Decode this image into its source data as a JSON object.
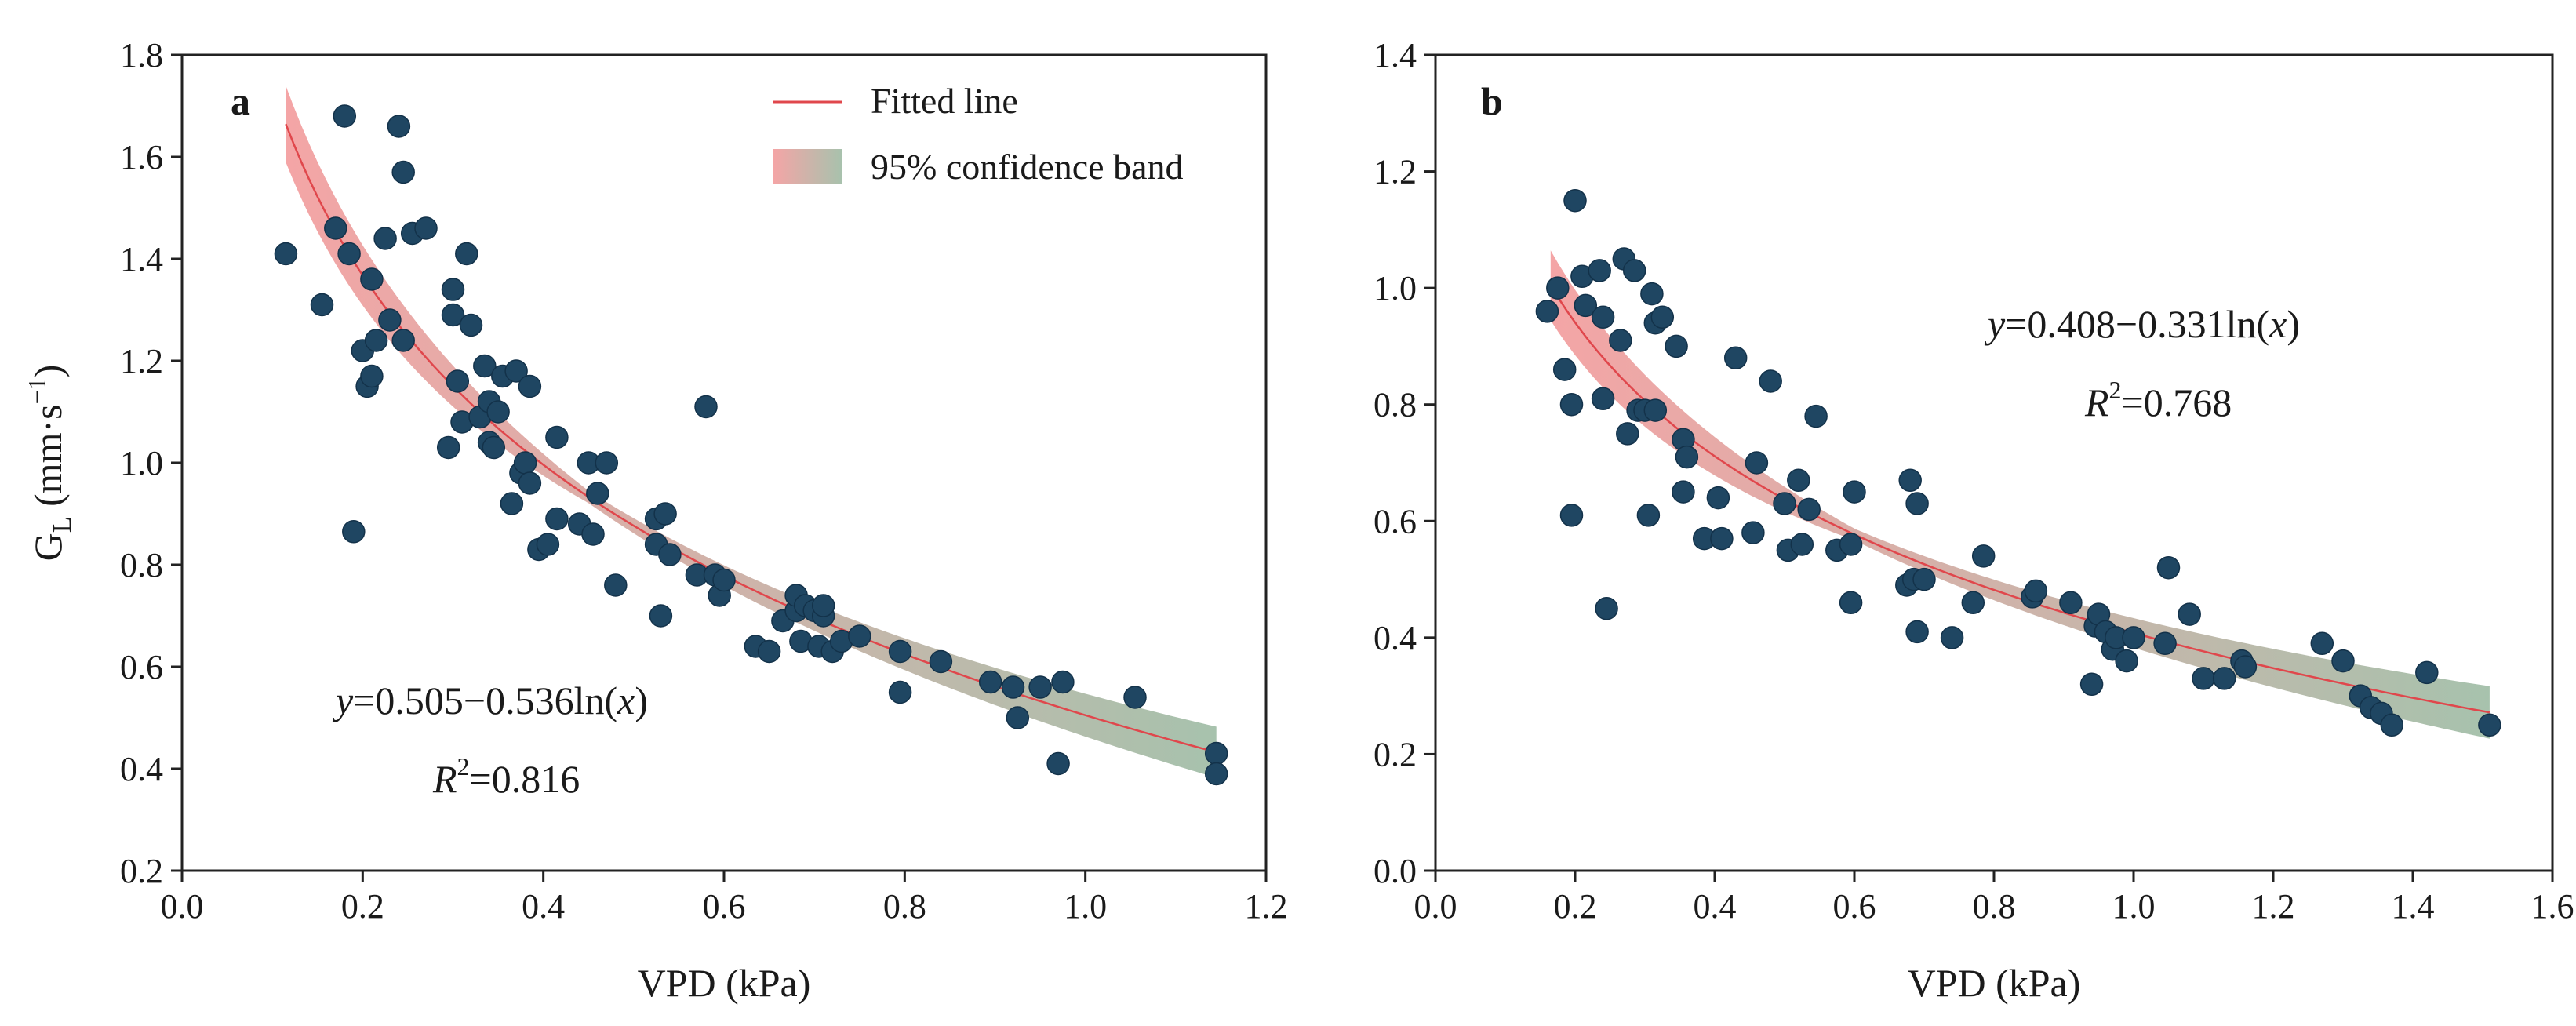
{
  "chart_data": [
    {
      "type": "scatter",
      "panel_label": "a",
      "xlabel": "VPD (kPa)",
      "ylabel_main": "G",
      "ylabel_sub": "L",
      "ylabel_units_pre": " (mm·s",
      "ylabel_units_sup": "−1",
      "ylabel_units_post": ")",
      "xlim": [
        0,
        1.2
      ],
      "ylim": [
        0.2,
        1.8
      ],
      "xticks": [
        0.0,
        0.2,
        0.4,
        0.6,
        0.8,
        1.0,
        1.2
      ],
      "yticks": [
        0.2,
        0.4,
        0.6,
        0.8,
        1.0,
        1.2,
        1.4,
        1.6,
        1.8
      ],
      "tick_decimals": 1,
      "fit": {
        "a": 0.505,
        "b": -0.536,
        "x_range": [
          0.115,
          1.145
        ],
        "band_halfwidth_ends": [
          0.075,
          0.05
        ],
        "band_halfwidth_mid": 0.012,
        "band_mid_x": 0.45
      },
      "equation": {
        "y": "y",
        "rhs": "=0.505−0.536ln(",
        "x": "x",
        "close": ")"
      },
      "r2": {
        "r": "R",
        "sup": "2",
        "value": "=0.816"
      },
      "legend": {
        "fit_label": "Fitted line",
        "band_label": "95% confidence band",
        "position": "top-right"
      },
      "points": [
        [
          0.115,
          1.41
        ],
        [
          0.155,
          1.31
        ],
        [
          0.17,
          1.46
        ],
        [
          0.18,
          1.68
        ],
        [
          0.185,
          1.41
        ],
        [
          0.19,
          0.865
        ],
        [
          0.2,
          1.22
        ],
        [
          0.205,
          1.15
        ],
        [
          0.21,
          1.36
        ],
        [
          0.21,
          1.17
        ],
        [
          0.215,
          1.24
        ],
        [
          0.225,
          1.44
        ],
        [
          0.23,
          1.28
        ],
        [
          0.24,
          1.66
        ],
        [
          0.245,
          1.57
        ],
        [
          0.245,
          1.24
        ],
        [
          0.255,
          1.45
        ],
        [
          0.27,
          1.46
        ],
        [
          0.295,
          1.03
        ],
        [
          0.3,
          1.29
        ],
        [
          0.3,
          1.34
        ],
        [
          0.305,
          1.16
        ],
        [
          0.31,
          1.08
        ],
        [
          0.315,
          1.41
        ],
        [
          0.32,
          1.27
        ],
        [
          0.33,
          1.09
        ],
        [
          0.335,
          1.19
        ],
        [
          0.34,
          1.04
        ],
        [
          0.34,
          1.12
        ],
        [
          0.345,
          1.03
        ],
        [
          0.35,
          1.1
        ],
        [
          0.355,
          1.17
        ],
        [
          0.365,
          0.92
        ],
        [
          0.37,
          1.18
        ],
        [
          0.375,
          0.98
        ],
        [
          0.38,
          1.0
        ],
        [
          0.385,
          0.96
        ],
        [
          0.385,
          1.15
        ],
        [
          0.395,
          0.83
        ],
        [
          0.405,
          0.84
        ],
        [
          0.415,
          1.05
        ],
        [
          0.415,
          0.89
        ],
        [
          0.44,
          0.88
        ],
        [
          0.45,
          1.0
        ],
        [
          0.455,
          0.86
        ],
        [
          0.46,
          0.94
        ],
        [
          0.47,
          1.0
        ],
        [
          0.48,
          0.76
        ],
        [
          0.525,
          0.89
        ],
        [
          0.525,
          0.84
        ],
        [
          0.53,
          0.7
        ],
        [
          0.535,
          0.9
        ],
        [
          0.54,
          0.82
        ],
        [
          0.57,
          0.78
        ],
        [
          0.58,
          1.11
        ],
        [
          0.59,
          0.78
        ],
        [
          0.595,
          0.74
        ],
        [
          0.6,
          0.77
        ],
        [
          0.635,
          0.64
        ],
        [
          0.65,
          0.63
        ],
        [
          0.665,
          0.69
        ],
        [
          0.68,
          0.71
        ],
        [
          0.68,
          0.74
        ],
        [
          0.685,
          0.65
        ],
        [
          0.69,
          0.72
        ],
        [
          0.7,
          0.71
        ],
        [
          0.705,
          0.64
        ],
        [
          0.71,
          0.7
        ],
        [
          0.71,
          0.72
        ],
        [
          0.72,
          0.63
        ],
        [
          0.73,
          0.65
        ],
        [
          0.75,
          0.66
        ],
        [
          0.795,
          0.63
        ],
        [
          0.795,
          0.55
        ],
        [
          0.84,
          0.61
        ],
        [
          0.895,
          0.57
        ],
        [
          0.92,
          0.56
        ],
        [
          0.925,
          0.5
        ],
        [
          0.95,
          0.56
        ],
        [
          0.97,
          0.41
        ],
        [
          0.975,
          0.57
        ],
        [
          1.055,
          0.54
        ],
        [
          1.145,
          0.43
        ],
        [
          1.145,
          0.39
        ]
      ]
    },
    {
      "type": "scatter",
      "panel_label": "b",
      "xlabel": "VPD (kPa)",
      "xlim": [
        0,
        1.6
      ],
      "ylim": [
        0.0,
        1.4
      ],
      "xticks": [
        0.0,
        0.2,
        0.4,
        0.6,
        0.8,
        1.0,
        1.2,
        1.4,
        1.6
      ],
      "yticks": [
        0.0,
        0.2,
        0.4,
        0.6,
        0.8,
        1.0,
        1.2,
        1.4
      ],
      "tick_decimals": 1,
      "fit": {
        "a": 0.408,
        "b": -0.331,
        "x_range": [
          0.165,
          1.51
        ],
        "band_halfwidth_ends": [
          0.06,
          0.045
        ],
        "band_halfwidth_mid": 0.01,
        "band_mid_x": 0.6
      },
      "equation": {
        "y": "y",
        "rhs": "=0.408−0.331ln(",
        "x": "x",
        "close": ")"
      },
      "r2": {
        "r": "R",
        "sup": "2",
        "value": "=0.768"
      },
      "points": [
        [
          0.16,
          0.96
        ],
        [
          0.175,
          1.0
        ],
        [
          0.185,
          0.86
        ],
        [
          0.195,
          0.8
        ],
        [
          0.195,
          0.61
        ],
        [
          0.2,
          1.15
        ],
        [
          0.21,
          1.02
        ],
        [
          0.215,
          0.97
        ],
        [
          0.235,
          1.03
        ],
        [
          0.24,
          0.95
        ],
        [
          0.24,
          0.81
        ],
        [
          0.245,
          0.45
        ],
        [
          0.265,
          0.91
        ],
        [
          0.27,
          1.05
        ],
        [
          0.275,
          0.75
        ],
        [
          0.285,
          1.03
        ],
        [
          0.29,
          0.79
        ],
        [
          0.3,
          0.79
        ],
        [
          0.305,
          0.61
        ],
        [
          0.31,
          0.99
        ],
        [
          0.315,
          0.94
        ],
        [
          0.315,
          0.79
        ],
        [
          0.325,
          0.95
        ],
        [
          0.345,
          0.9
        ],
        [
          0.355,
          0.74
        ],
        [
          0.355,
          0.65
        ],
        [
          0.36,
          0.71
        ],
        [
          0.385,
          0.57
        ],
        [
          0.405,
          0.64
        ],
        [
          0.41,
          0.57
        ],
        [
          0.43,
          0.88
        ],
        [
          0.455,
          0.58
        ],
        [
          0.46,
          0.7
        ],
        [
          0.48,
          0.84
        ],
        [
          0.5,
          0.63
        ],
        [
          0.505,
          0.55
        ],
        [
          0.52,
          0.67
        ],
        [
          0.525,
          0.56
        ],
        [
          0.535,
          0.62
        ],
        [
          0.545,
          0.78
        ],
        [
          0.575,
          0.55
        ],
        [
          0.595,
          0.46
        ],
        [
          0.595,
          0.56
        ],
        [
          0.6,
          0.65
        ],
        [
          0.675,
          0.49
        ],
        [
          0.68,
          0.67
        ],
        [
          0.685,
          0.5
        ],
        [
          0.69,
          0.41
        ],
        [
          0.69,
          0.63
        ],
        [
          0.7,
          0.5
        ],
        [
          0.74,
          0.4
        ],
        [
          0.77,
          0.46
        ],
        [
          0.785,
          0.54
        ],
        [
          0.855,
          0.47
        ],
        [
          0.86,
          0.48
        ],
        [
          0.91,
          0.46
        ],
        [
          0.94,
          0.32
        ],
        [
          0.945,
          0.42
        ],
        [
          0.95,
          0.44
        ],
        [
          0.96,
          0.41
        ],
        [
          0.97,
          0.38
        ],
        [
          0.975,
          0.4
        ],
        [
          0.99,
          0.36
        ],
        [
          1.0,
          0.4
        ],
        [
          1.045,
          0.39
        ],
        [
          1.05,
          0.52
        ],
        [
          1.08,
          0.44
        ],
        [
          1.1,
          0.33
        ],
        [
          1.13,
          0.33
        ],
        [
          1.155,
          0.36
        ],
        [
          1.16,
          0.35
        ],
        [
          1.27,
          0.39
        ],
        [
          1.3,
          0.36
        ],
        [
          1.325,
          0.3
        ],
        [
          1.34,
          0.28
        ],
        [
          1.355,
          0.27
        ],
        [
          1.37,
          0.25
        ],
        [
          1.42,
          0.34
        ],
        [
          1.51,
          0.25
        ]
      ]
    }
  ],
  "colors": {
    "points": "#1f4662",
    "fit_line": "#e0474c",
    "band_start": "#f4a5a6",
    "band_end": "#a7c2ad"
  }
}
